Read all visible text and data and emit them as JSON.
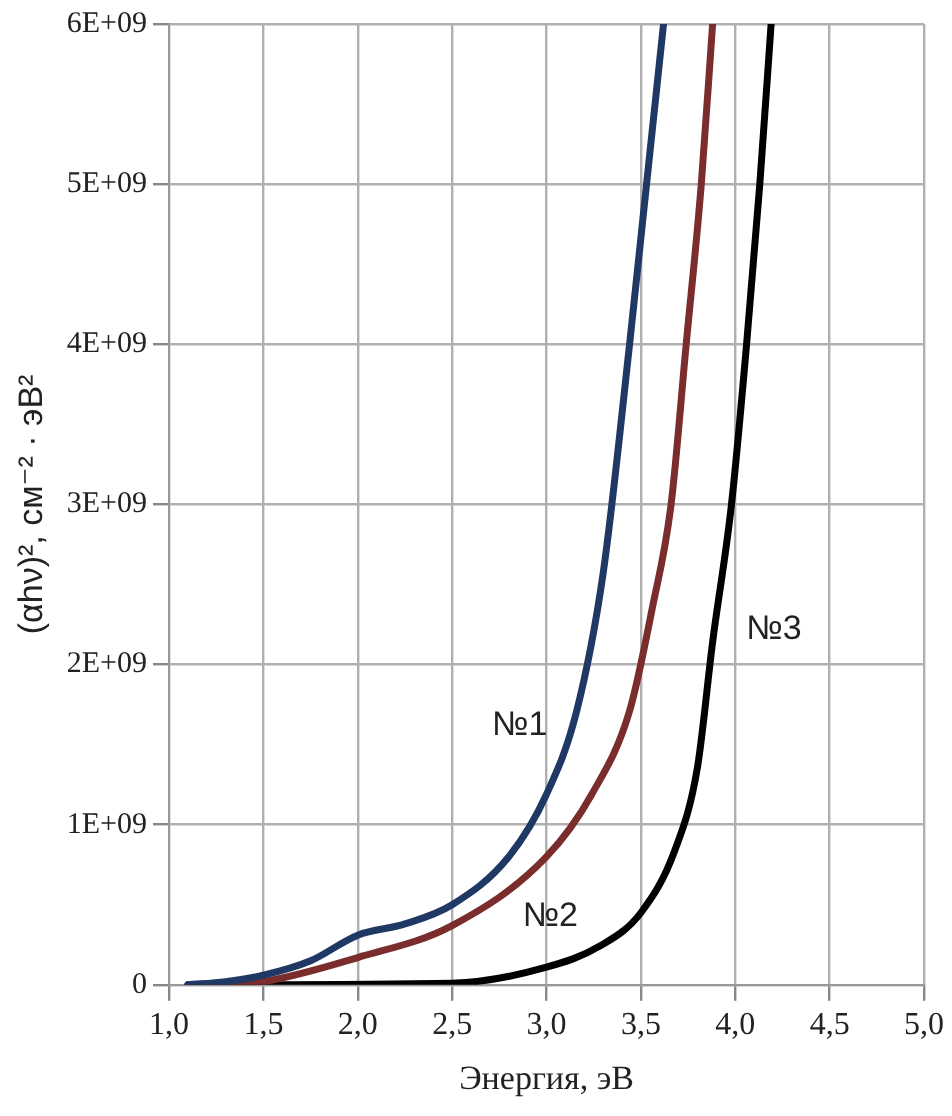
{
  "chart_data": {
    "type": "line",
    "xlabel": "Энергия, эВ",
    "ylabel": "(αhν)², см⁻² · эВ²",
    "xlim": [
      1.0,
      5.0
    ],
    "xticks": [
      {
        "value": 1.0,
        "label": "1,0"
      },
      {
        "value": 1.5,
        "label": "1,5"
      },
      {
        "value": 2.0,
        "label": "2,0"
      },
      {
        "value": 2.5,
        "label": "2,5"
      },
      {
        "value": 3.0,
        "label": "3,0"
      },
      {
        "value": 3.5,
        "label": "3,5"
      },
      {
        "value": 4.0,
        "label": "4,0"
      },
      {
        "value": 4.5,
        "label": "4,5"
      },
      {
        "value": 5.0,
        "label": "5,0"
      }
    ],
    "ylim": [
      0,
      6000000000
    ],
    "yticks": [
      0,
      {
        "value": 1000000000,
        "label": "1E+09"
      },
      {
        "value": 2000000000,
        "label": "2E+09"
      },
      {
        "value": 3000000000,
        "label": "3E+09"
      },
      {
        "value": 4000000000,
        "label": "4E+09"
      },
      {
        "value": 5000000000,
        "label": "5E+09"
      },
      {
        "value": 6000000000,
        "label": "6E+09"
      }
    ],
    "grid": true,
    "legend": false,
    "marker": "none",
    "line_style": "solid",
    "series": [
      {
        "name": "№1",
        "color": "#1f3864",
        "x": [
          1.1,
          1.3,
          1.5,
          1.75,
          2.0,
          2.25,
          2.5,
          2.8,
          3.0,
          3.16,
          3.3,
          3.44,
          3.53,
          3.62
        ],
        "values": [
          0,
          20000000,
          60000000,
          150000000,
          310000000,
          380000000,
          500000000,
          800000000,
          1190000000,
          1710000000,
          2570000000,
          4000000000,
          5000000000,
          6000000000
        ]
      },
      {
        "name": "№2",
        "color": "#7b2c2c",
        "x": [
          1.2,
          1.5,
          2.0,
          2.5,
          3.0,
          3.24,
          3.44,
          3.56,
          3.66,
          3.74,
          3.82,
          3.88
        ],
        "values": [
          0,
          20000000,
          170000000,
          370000000,
          800000000,
          1190000000,
          1710000000,
          2350000000,
          3000000000,
          4000000000,
          5000000000,
          6000000000
        ]
      },
      {
        "name": "№3",
        "color": "#000000",
        "x": [
          1.1,
          2.5,
          3.0,
          3.28,
          3.5,
          3.68,
          3.8,
          3.88,
          3.98,
          4.06,
          4.13,
          4.19
        ],
        "values": [
          0,
          10000000,
          110000000,
          240000000,
          450000000,
          840000000,
          1360000000,
          2140000000,
          3000000000,
          4000000000,
          5000000000,
          6000000000
        ]
      }
    ]
  }
}
